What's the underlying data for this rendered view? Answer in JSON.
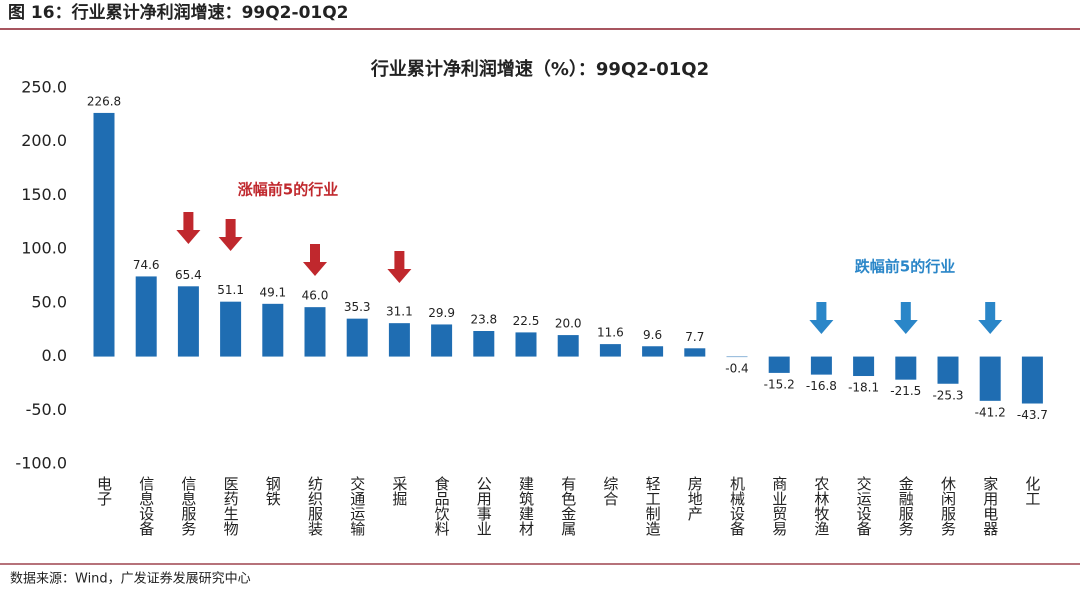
{
  "header": "图 16：行业累计净利润增速：99Q2-01Q2",
  "source": "数据来源：Wind，广发证券发展研究中心",
  "chart_data": {
    "type": "bar",
    "title": "行业累计净利润增速（%）：99Q2-01Q2",
    "categories": [
      "电子",
      "信息设备",
      "信息服务",
      "医药生物",
      "钢铁",
      "纺织服装",
      "交通运输",
      "采掘",
      "食品饮料",
      "公用事业",
      "建筑建材",
      "有色金属",
      "综合",
      "轻工制造",
      "房地产",
      "机械设备",
      "商业贸易",
      "农林牧渔",
      "交运设备",
      "金融服务",
      "休闲服务",
      "家用电器",
      "化工"
    ],
    "values": [
      226.8,
      74.6,
      65.4,
      51.1,
      49.1,
      46.0,
      35.3,
      31.1,
      29.9,
      23.8,
      22.5,
      20.0,
      11.6,
      9.6,
      7.7,
      -0.4,
      -15.2,
      -16.8,
      -18.1,
      -21.5,
      -25.3,
      -41.2,
      -43.7
    ],
    "value_labels": [
      "226.8",
      "74.6",
      "65.4",
      "51.1",
      "49.1",
      "46.0",
      "35.3",
      "31.1",
      "29.9",
      "23.8",
      "22.5",
      "20.0",
      "11.6",
      "9.6",
      "7.7",
      "-0.4",
      "-15.2",
      "-16.8",
      "-18.1",
      "-21.5",
      "-25.3",
      "-41.2",
      "-43.7"
    ],
    "color": "#1f6db2",
    "ylim": [
      -100,
      250
    ],
    "yticks": [
      {
        "value": -100,
        "label": "-100.0"
      },
      {
        "value": -50,
        "label": "-50.0"
      },
      {
        "value": 0,
        "label": "0.0"
      },
      {
        "value": 50,
        "label": "50.0"
      },
      {
        "value": 100,
        "label": "100.0"
      },
      {
        "value": 150,
        "label": "150.0"
      },
      {
        "value": 200,
        "label": "200.0"
      },
      {
        "value": 250,
        "label": "250.0"
      }
    ],
    "annotations": [
      {
        "text": "涨幅前5的行业",
        "color": "#c0282d"
      },
      {
        "text": "跌幅前5的行业",
        "color": "#2a86c8"
      }
    ]
  }
}
